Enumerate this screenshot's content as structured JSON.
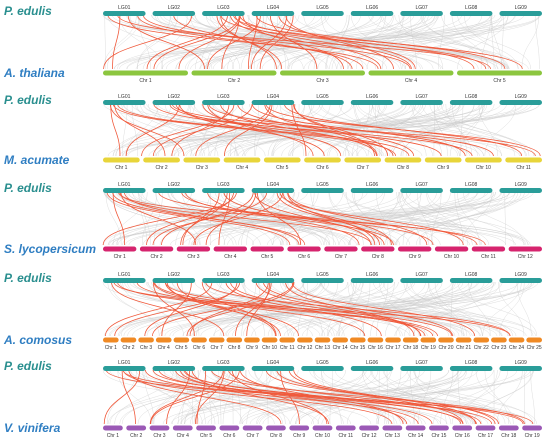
{
  "colors": {
    "species_label": "#2a8f8f",
    "target_label": "#2f7ec2",
    "synteny_bg": "#c8c8c8",
    "synteny_hl": "#f05a3c"
  },
  "panels": [
    {
      "top_species": "P. edulis",
      "top_color": "#2a9d99",
      "top_chrs": [
        "LG01",
        "LG02",
        "LG03",
        "LG04",
        "LG05",
        "LG06",
        "LG07",
        "LG08",
        "LG09"
      ],
      "bottom_species": "A. thaliana",
      "bottom_color": "#8cc63f",
      "bottom_chrs": [
        "Chr 1",
        "Chr 2",
        "Chr 3",
        "Chr 4",
        "Chr 5"
      ]
    },
    {
      "top_species": "P. edulis",
      "top_color": "#2a9d99",
      "top_chrs": [
        "LG01",
        "LG02",
        "LG03",
        "LG04",
        "LG05",
        "LG06",
        "LG07",
        "LG08",
        "LG09"
      ],
      "bottom_species": "M. acumate",
      "bottom_color": "#e8d53a",
      "bottom_chrs": [
        "Chr 1",
        "Chr 2",
        "Chr 3",
        "Chr 4",
        "Chr 5",
        "Chr 6",
        "Chr 7",
        "Chr 8",
        "Chr 9",
        "Chr 10",
        "Chr 11"
      ]
    },
    {
      "top_species": "P. edulis",
      "top_color": "#2a9d99",
      "top_chrs": [
        "LG01",
        "LG02",
        "LG03",
        "LG04",
        "LG05",
        "LG06",
        "LG07",
        "LG08",
        "LG09"
      ],
      "bottom_species": "S. lycopersicum",
      "bottom_color": "#d6246e",
      "bottom_chrs": [
        "Chr 1",
        "Chr 2",
        "Chr 3",
        "Chr 4",
        "Chr 5",
        "Chr 6",
        "Chr 7",
        "Chr 8",
        "Chr 9",
        "Chr 10",
        "Chr 11",
        "Chr 12"
      ]
    },
    {
      "top_species": "P. edulis",
      "top_color": "#2a9d99",
      "top_chrs": [
        "LG01",
        "LG02",
        "LG03",
        "LG04",
        "LG05",
        "LG06",
        "LG07",
        "LG08",
        "LG09"
      ],
      "bottom_species": "A. comosus",
      "bottom_color": "#f08a24",
      "bottom_chrs": [
        "Chr 1",
        "Chr 2",
        "Chr 3",
        "Chr 4",
        "Chr 5",
        "Chr 6",
        "Chr 7",
        "Chr 8",
        "Chr 9",
        "Chr 10",
        "Chr 11",
        "Chr 12",
        "Chr 13",
        "Chr 14",
        "Chr 15",
        "Chr 16",
        "Chr 17",
        "Chr 18",
        "Chr 19",
        "Chr 20",
        "Chr 21",
        "Chr 22",
        "Chr 23",
        "Chr 24",
        "Chr 25"
      ]
    },
    {
      "top_species": "P. edulis",
      "top_color": "#2a9d99",
      "top_chrs": [
        "LG01",
        "LG02",
        "LG03",
        "LG04",
        "LG05",
        "LG06",
        "LG07",
        "LG08",
        "LG09"
      ],
      "bottom_species": "V. vinifera",
      "bottom_color": "#9b59b6",
      "bottom_chrs": [
        "Chr 1",
        "Chr 2",
        "Chr 3",
        "Chr 4",
        "Chr 5",
        "Chr 6",
        "Chr 7",
        "Chr 8",
        "Chr 9",
        "Chr 10",
        "Chr 11",
        "Chr 12",
        "Chr 13",
        "Chr 14",
        "Chr 15",
        "Chr 16",
        "Chr 17",
        "Chr 18",
        "Chr 19"
      ]
    }
  ]
}
